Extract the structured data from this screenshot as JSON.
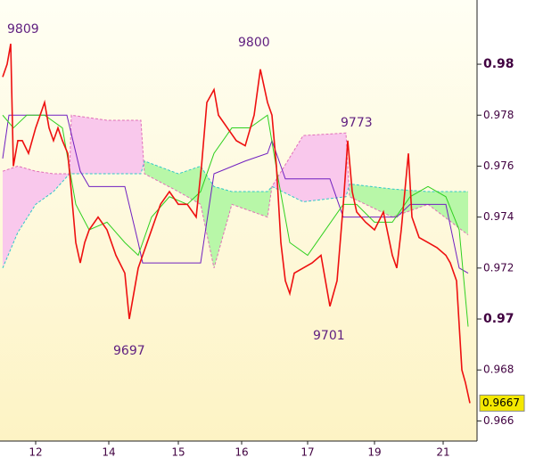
{
  "chart_data": {
    "type": "ichimoku",
    "xlim": [
      0,
      107
    ],
    "xticks": [
      {
        "value": 8,
        "label": "12"
      },
      {
        "value": 24.4,
        "label": "14"
      },
      {
        "value": 40,
        "label": "15"
      },
      {
        "value": 54.2,
        "label": "16"
      },
      {
        "value": 69,
        "label": "17"
      },
      {
        "value": 84,
        "label": "19"
      },
      {
        "value": 99.4,
        "label": "21"
      }
    ],
    "ylim": [
      0.96521,
      0.98252
    ],
    "yticks": [
      0.966,
      0.968,
      0.97,
      0.972,
      0.974,
      0.976,
      0.978,
      0.98
    ],
    "cloud": {
      "x": [
        0.6,
        4,
        8,
        12,
        15.6,
        16,
        24,
        31.6,
        32.4,
        40,
        45,
        48,
        52,
        60,
        61,
        68,
        77.6,
        78.4,
        88,
        96,
        105
      ],
      "span_a": [
        0.972,
        0.9734,
        0.9745,
        0.975,
        0.9757,
        0.9757,
        0.9757,
        0.9757,
        0.9762,
        0.9757,
        0.976,
        0.9752,
        0.975,
        0.975,
        0.9752,
        0.9746,
        0.9748,
        0.9753,
        0.9751,
        0.975,
        0.975
      ],
      "span_b": [
        0.9758,
        0.976,
        0.9758,
        0.9757,
        0.9757,
        0.978,
        0.9778,
        0.9778,
        0.9757,
        0.975,
        0.9745,
        0.972,
        0.9745,
        0.974,
        0.9752,
        0.9772,
        0.9773,
        0.9748,
        0.974,
        0.9745,
        0.9733
      ],
      "color_up": "#b8f7a8",
      "color_down": "#f9c8ec",
      "span_a_color": "#30c8c8",
      "span_b_color": "#e070b8"
    },
    "series": [
      {
        "color": "#7020c0",
        "x": [
          0.6,
          2,
          15,
          18,
          20,
          28,
          31,
          32,
          45,
          48,
          55,
          60,
          61,
          64,
          74,
          77,
          80,
          89,
          92,
          100,
          103,
          105
        ],
        "values": [
          0.9763,
          0.978,
          0.978,
          0.9758,
          0.9752,
          0.9752,
          0.973,
          0.9722,
          0.9722,
          0.9757,
          0.9762,
          0.9765,
          0.977,
          0.9755,
          0.9755,
          0.974,
          0.974,
          0.974,
          0.9745,
          0.9745,
          0.972,
          0.9718
        ]
      },
      {
        "color": "#30d020",
        "x": [
          0.6,
          3,
          6,
          10,
          14,
          17,
          20,
          24,
          28,
          31,
          34,
          38,
          42,
          45,
          48,
          52,
          56,
          60,
          62.4,
          65,
          69,
          73,
          77,
          80,
          84,
          88,
          92,
          96,
          100,
          103,
          105
        ],
        "values": [
          0.978,
          0.9775,
          0.978,
          0.978,
          0.9775,
          0.9745,
          0.9735,
          0.9738,
          0.973,
          0.9725,
          0.974,
          0.9748,
          0.9745,
          0.975,
          0.9765,
          0.9775,
          0.9775,
          0.978,
          0.9755,
          0.973,
          0.9725,
          0.9735,
          0.9745,
          0.9745,
          0.9738,
          0.9738,
          0.9748,
          0.9752,
          0.9748,
          0.9735,
          0.9697
        ]
      },
      {
        "color": "#ee1010",
        "x": [
          0.6,
          1.6,
          2.4,
          3,
          4,
          5,
          6.4,
          8,
          10,
          11,
          12,
          13,
          14,
          15.2,
          16,
          17,
          18,
          19,
          20,
          22,
          24,
          26,
          28,
          29,
          30,
          31,
          32,
          34,
          36,
          38,
          40,
          42,
          44,
          45.2,
          46.4,
          48,
          49,
          51,
          53,
          55,
          57,
          58.4,
          60,
          61,
          62,
          63,
          64,
          65,
          66,
          68,
          70,
          72,
          74,
          75.6,
          77,
          78,
          79,
          80,
          82,
          84,
          86,
          88,
          89,
          90,
          91.6,
          92.4,
          94,
          96,
          98,
          100,
          101,
          102.4,
          103.6,
          104.4,
          105.4
        ],
        "values": [
          0.9795,
          0.98,
          0.9808,
          0.976,
          0.977,
          0.977,
          0.9765,
          0.9775,
          0.9785,
          0.9775,
          0.977,
          0.9775,
          0.977,
          0.9765,
          0.975,
          0.973,
          0.9722,
          0.973,
          0.9735,
          0.974,
          0.9735,
          0.9725,
          0.9718,
          0.97,
          0.971,
          0.972,
          0.9725,
          0.9735,
          0.9745,
          0.975,
          0.9745,
          0.9745,
          0.974,
          0.976,
          0.9785,
          0.979,
          0.978,
          0.9775,
          0.977,
          0.9768,
          0.978,
          0.9798,
          0.9785,
          0.978,
          0.976,
          0.973,
          0.9715,
          0.971,
          0.9718,
          0.972,
          0.9722,
          0.9725,
          0.9705,
          0.9715,
          0.9745,
          0.977,
          0.975,
          0.9742,
          0.9738,
          0.9735,
          0.9742,
          0.9725,
          0.972,
          0.9735,
          0.9765,
          0.974,
          0.9732,
          0.973,
          0.9728,
          0.9725,
          0.9722,
          0.9715,
          0.968,
          0.9675,
          0.9667
        ]
      }
    ],
    "annotations": [
      "9809",
      "9800",
      "9773",
      "9697",
      "9701"
    ],
    "last_price": 0.9667,
    "last_price_color": "#f4e800"
  }
}
